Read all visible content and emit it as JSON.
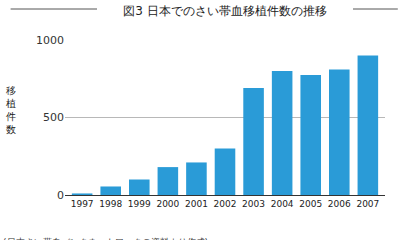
{
  "chart_data": {
    "type": "bar",
    "title": "図3 日本でのさい帯血移植件数の推移",
    "y_label": "移植件数",
    "annotations": [
      "(日本さい帯血バンクネットワークの資料より作成)"
    ],
    "categories": [
      "1997",
      "1998",
      "1999",
      "2000",
      "2001",
      "2002",
      "2003",
      "2004",
      "2005",
      "2006",
      "2007"
    ],
    "values": [
      10,
      55,
      100,
      180,
      210,
      300,
      690,
      800,
      775,
      810,
      900
    ],
    "color": "#2a9bd7",
    "ylim": [
      0,
      1000
    ],
    "yticks": [
      0,
      500,
      1000
    ],
    "grid": true
  }
}
